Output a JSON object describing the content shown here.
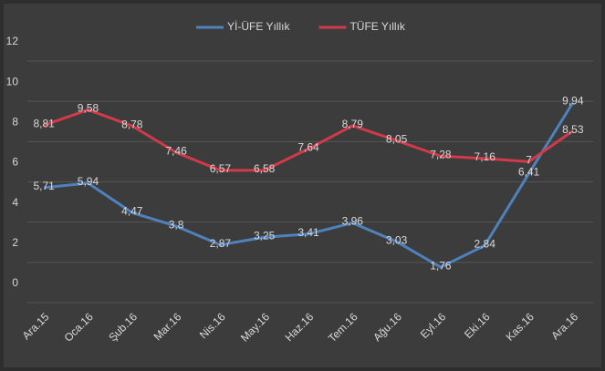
{
  "chart_data": {
    "type": "line",
    "categories": [
      "Ara.15",
      "Oca.16",
      "Şub.16",
      "Mar.16",
      "Nis.16",
      "May.16",
      "Haz.16",
      "Tem.16",
      "Ağu.16",
      "Eyl.16",
      "Eki.16",
      "Kas.16",
      "Ara.16"
    ],
    "series": [
      {
        "name": "Yİ-ÜFE Yıllık",
        "color": "#4f81bd",
        "values": [
          5.71,
          5.94,
          4.47,
          3.8,
          2.87,
          3.25,
          3.41,
          3.96,
          3.03,
          1.76,
          2.84,
          6.41,
          9.94
        ],
        "value_labels": [
          "5,71",
          "5,94",
          "4,47",
          "3,8",
          "2,87",
          "3,25",
          "3,41",
          "3,96",
          "3,03",
          "1,76",
          "2,84",
          "6,41",
          "9,94"
        ]
      },
      {
        "name": "TÜFE Yıllık",
        "color": "#d23a4a",
        "values": [
          8.81,
          9.58,
          8.78,
          7.46,
          6.57,
          6.58,
          7.64,
          8.79,
          8.05,
          7.28,
          7.16,
          7,
          8.53
        ],
        "value_labels": [
          "8,81",
          "9,58",
          "8,78",
          "7,46",
          "6,57",
          "6,58",
          "7,64",
          "8,79",
          "8,05",
          "7,28",
          "7,16",
          "7",
          "8,53"
        ]
      }
    ],
    "ylim": [
      0,
      12
    ],
    "yticks": [
      0,
      2,
      4,
      6,
      8,
      10,
      12
    ],
    "grid": true,
    "legend": "top"
  }
}
